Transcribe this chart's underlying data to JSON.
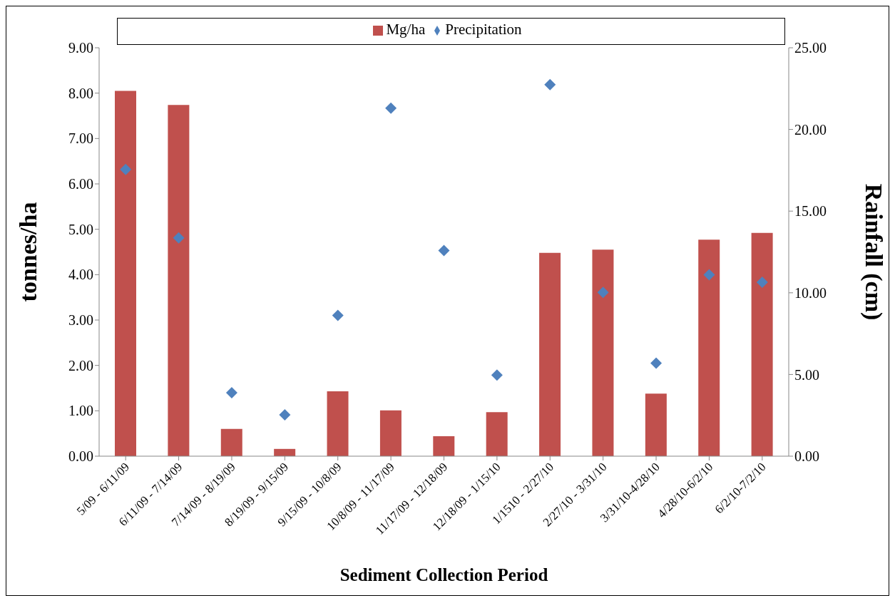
{
  "chart_data": {
    "type": "bar",
    "xlabel": "Sediment Collection Period",
    "ylabel": "tonnes/ha",
    "y2label": "Rainfall (cm)",
    "categories": [
      "5/09 - 6/11/09",
      "6/11/09 - 7/14/09",
      "7/14/09 - 8/19/09",
      "8/19/09 - 9/15/09",
      "9/15/09 - 10/8/09",
      "10/8/09 - 11/17/09",
      "11/17/09 - 12/18/09",
      "12/18/09 - 1/15/10",
      "1/1510 - 2/27/10",
      "2/27/10 - 3/31/10",
      "3/31/10-4/28/10",
      "4/28/10-6/2/10",
      "6/2/10-7/2/10"
    ],
    "series": [
      {
        "name": "Mg/ha",
        "color": "#c0504d",
        "values": [
          8.05,
          7.74,
          0.6,
          0.16,
          1.43,
          1.01,
          0.44,
          0.97,
          4.48,
          4.55,
          1.38,
          4.77,
          4.92
        ]
      },
      {
        "name": "Precipitation",
        "type": "scatter",
        "axis": "y2",
        "color": "#4f81bd",
        "values": [
          17.55,
          13.36,
          3.88,
          2.53,
          8.62,
          21.3,
          12.59,
          4.96,
          22.74,
          10.02,
          5.69,
          11.1,
          10.65
        ]
      }
    ],
    "ylim": [
      0,
      9
    ],
    "yticks": [
      {
        "value": 0,
        "label": "0.00"
      },
      {
        "value": 1,
        "label": "1.00"
      },
      {
        "value": 2,
        "label": "2.00"
      },
      {
        "value": 3,
        "label": "3.00"
      },
      {
        "value": 4,
        "label": "4.00"
      },
      {
        "value": 5,
        "label": "5.00"
      },
      {
        "value": 6,
        "label": "6.00"
      },
      {
        "value": 7,
        "label": "7.00"
      },
      {
        "value": 8,
        "label": "8.00"
      },
      {
        "value": 9,
        "label": "9.00"
      }
    ],
    "y2lim": [
      0,
      25
    ],
    "y2ticks": [
      {
        "value": 0,
        "label": "0.00"
      },
      {
        "value": 5,
        "label": "5.00"
      },
      {
        "value": 10,
        "label": "10.00"
      },
      {
        "value": 15,
        "label": "15.00"
      },
      {
        "value": 20,
        "label": "20.00"
      },
      {
        "value": 25,
        "label": "25.00"
      }
    ],
    "legend": "top",
    "marker": "diamond",
    "grid": false
  }
}
